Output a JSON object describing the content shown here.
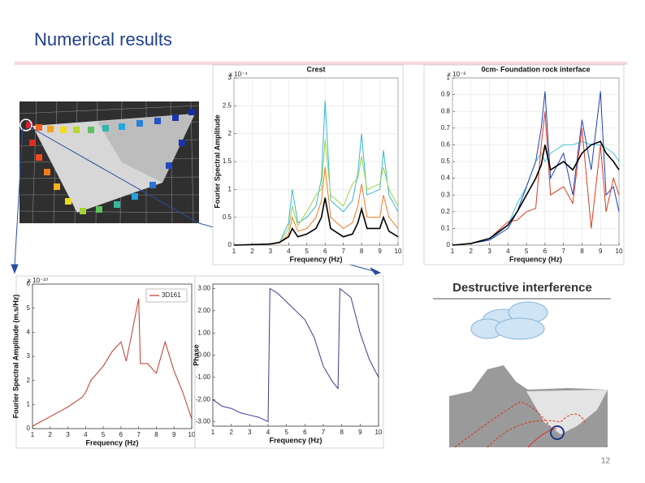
{
  "title": "Numerical results",
  "diagram_label": "Destructive interference",
  "page_number": "12",
  "chart_data": [
    {
      "type": "line",
      "title": "Crest",
      "xlabel": "Frequency (Hz)",
      "ylabel": "Fourier Spectral Amplitude",
      "y_exponent_label": "x 10⁻⁴",
      "x": [
        1,
        2,
        3,
        3.5,
        4,
        4.2,
        4.5,
        5,
        5.5,
        5.8,
        6,
        6.3,
        7,
        7.5,
        7.8,
        8,
        8.3,
        9,
        9.2,
        9.5,
        10
      ],
      "series": [
        {
          "color": "#35b6d6",
          "values": [
            0,
            0.01,
            0.02,
            0.05,
            0.4,
            1.0,
            0.4,
            0.5,
            0.7,
            1.2,
            2.6,
            0.8,
            0.6,
            0.8,
            1.3,
            2.0,
            0.9,
            1.0,
            1.7,
            0.9,
            0.6
          ]
        },
        {
          "color": "#9bd64a",
          "values": [
            0,
            0.01,
            0.02,
            0.05,
            0.3,
            0.7,
            0.35,
            0.6,
            0.9,
            1.0,
            1.9,
            0.9,
            0.7,
            1.1,
            1.2,
            1.6,
            1.0,
            1.1,
            1.4,
            1.0,
            0.7
          ]
        },
        {
          "color": "#f07a22",
          "values": [
            0,
            0.01,
            0.02,
            0.04,
            0.2,
            0.5,
            0.25,
            0.3,
            0.5,
            0.8,
            1.4,
            0.5,
            0.3,
            0.4,
            0.7,
            1.1,
            0.5,
            0.5,
            0.9,
            0.5,
            0.3
          ]
        },
        {
          "color": "#000000",
          "values": [
            0,
            0.01,
            0.02,
            0.05,
            0.15,
            0.3,
            0.15,
            0.2,
            0.3,
            0.5,
            0.85,
            0.3,
            0.15,
            0.2,
            0.4,
            0.65,
            0.3,
            0.3,
            0.5,
            0.25,
            0.15
          ]
        }
      ],
      "xlim": [
        1,
        10
      ],
      "xticks": [
        1,
        2,
        3,
        4,
        5,
        6,
        7,
        8,
        9,
        10
      ],
      "ylim": [
        0,
        3
      ],
      "yticks": [
        0,
        0.5,
        1,
        1.5,
        2,
        2.5,
        3
      ],
      "grid": true
    },
    {
      "type": "line",
      "title": "0cm- Foundation rock interface",
      "xlabel": "Frequency (Hz)",
      "y_exponent_label": "x 10⁻³",
      "x": [
        1,
        2,
        3,
        4,
        4.5,
        5,
        5.5,
        5.8,
        6,
        6.3,
        7,
        7.5,
        8,
        8.5,
        9,
        9.3,
        9.7,
        10
      ],
      "series": [
        {
          "color": "#40c8d8",
          "values": [
            0,
            0.01,
            0.03,
            0.12,
            0.25,
            0.35,
            0.5,
            0.55,
            0.5,
            0.55,
            0.6,
            0.6,
            0.62,
            0.6,
            0.6,
            0.58,
            0.55,
            0.5
          ]
        },
        {
          "color": "#1f3fc0",
          "values": [
            0,
            0.01,
            0.03,
            0.1,
            0.2,
            0.35,
            0.5,
            0.7,
            0.92,
            0.4,
            0.55,
            0.3,
            0.75,
            0.45,
            0.92,
            0.3,
            0.35,
            0.2
          ]
        },
        {
          "color": "#e03a1e",
          "values": [
            0,
            0.01,
            0.04,
            0.14,
            0.15,
            0.2,
            0.22,
            0.6,
            0.8,
            0.3,
            0.35,
            0.25,
            0.7,
            0.1,
            0.6,
            0.2,
            0.4,
            0.3
          ]
        },
        {
          "color": "#000000",
          "values": [
            0,
            0.01,
            0.04,
            0.12,
            0.2,
            0.3,
            0.4,
            0.48,
            0.6,
            0.45,
            0.5,
            0.45,
            0.55,
            0.6,
            0.62,
            0.55,
            0.5,
            0.45
          ]
        }
      ],
      "xlim": [
        1,
        10
      ],
      "xticks": [
        1,
        2,
        3,
        4,
        5,
        6,
        7,
        8,
        9,
        10
      ],
      "ylim": [
        0,
        1
      ],
      "yticks": [
        0,
        0.1,
        0.2,
        0.3,
        0.4,
        0.5,
        0.6,
        0.7,
        0.8,
        0.9,
        1
      ],
      "grid": true
    },
    {
      "type": "line",
      "xlabel": "Frequency (Hz)",
      "ylabel": "Fourier Spectral Amplitude (m.s/Hz)",
      "y_exponent_label": "x 10⁻¹⁰",
      "x": [
        1,
        2,
        3,
        3.8,
        4,
        4.3,
        5,
        5.5,
        6,
        6.3,
        6.6,
        7,
        7.1,
        7.5,
        8,
        8.5,
        9,
        9.5,
        10
      ],
      "series": [
        {
          "name": "3D161",
          "color": "#c0392b",
          "values": [
            0.1,
            0.5,
            0.9,
            1.3,
            1.5,
            2.0,
            2.6,
            3.2,
            3.6,
            2.8,
            3.9,
            5.4,
            2.7,
            2.7,
            2.3,
            3.6,
            2.4,
            1.5,
            0.4
          ]
        }
      ],
      "xlim": [
        1,
        10
      ],
      "xticks": [
        1,
        2,
        3,
        4,
        5,
        6,
        7,
        8,
        9,
        10
      ],
      "ylim": [
        0,
        6
      ],
      "yticks": [
        0,
        1,
        2,
        3,
        4,
        5,
        6
      ],
      "grid": false,
      "legend": "upper right"
    },
    {
      "type": "line",
      "xlabel": "Frequency (Hz)",
      "ylabel": "Phase",
      "x": [
        1,
        1.5,
        2,
        2.5,
        3,
        3.5,
        4,
        4.1,
        4.5,
        5,
        5.5,
        6,
        6.5,
        7,
        7.5,
        7.8,
        7.9,
        8.5,
        9,
        9.5,
        10
      ],
      "series": [
        {
          "color": "#3b3b9a",
          "values": [
            -2.0,
            -2.3,
            -2.4,
            -2.6,
            -2.7,
            -2.8,
            -3.0,
            3.0,
            2.8,
            2.4,
            2.0,
            1.6,
            0.8,
            -0.5,
            -1.2,
            -1.5,
            3.0,
            2.6,
            1.0,
            -0.2,
            -1.0
          ]
        }
      ],
      "xlim": [
        1,
        10
      ],
      "xticks": [
        1,
        2,
        3,
        4,
        5,
        6,
        7,
        8,
        9,
        10
      ],
      "ylim": [
        -3.2,
        3.2
      ],
      "yticks": [
        {
          "value": -3,
          "label": "-3.00"
        },
        {
          "value": -2,
          "label": "-2.00"
        },
        {
          "value": -1,
          "label": "-1.00"
        },
        {
          "value": 0,
          "label": "0.00"
        },
        {
          "value": 1,
          "label": "1.00"
        },
        {
          "value": 2,
          "label": "2.00"
        },
        {
          "value": 3,
          "label": "3.00"
        }
      ],
      "grid": false
    }
  ]
}
